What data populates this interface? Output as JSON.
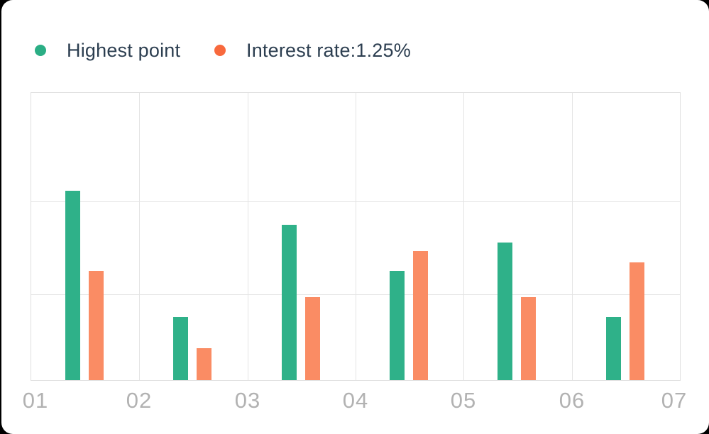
{
  "legend": {
    "items": [
      {
        "label": "Highest point",
        "dot_color": "#2BAE85"
      },
      {
        "label": "Interest rate:1.25%",
        "dot_color": "#F8693D"
      }
    ]
  },
  "chart_data": {
    "type": "bar",
    "title": "",
    "categories": [
      "01",
      "02",
      "03",
      "04",
      "05",
      "06",
      "07"
    ],
    "series": [
      {
        "name": "Highest point",
        "color": "#2FB189",
        "values": [
          66,
          22,
          54,
          38,
          48,
          22
        ]
      },
      {
        "name": "Interest rate:1.25%",
        "color": "#FA8C64",
        "values": [
          38,
          11,
          29,
          45,
          29,
          41
        ]
      }
    ],
    "xlabel": "",
    "ylabel": "",
    "ylim": [
      0,
      100
    ],
    "y_tick_labels": "none (decorative chart, unlabeled value axis; values are % of plot height)",
    "grid": "on",
    "bar_groups": "6 bar pairs placed between the 7 x-axis tick lines",
    "legend_position": "top-left",
    "colors": {
      "grid": "#E4E4E4",
      "axis_tick_text": "#B2B2B2",
      "legend_text": "#2C3E50",
      "card_background": "#FFFFFF",
      "page_background": "#000000"
    }
  }
}
